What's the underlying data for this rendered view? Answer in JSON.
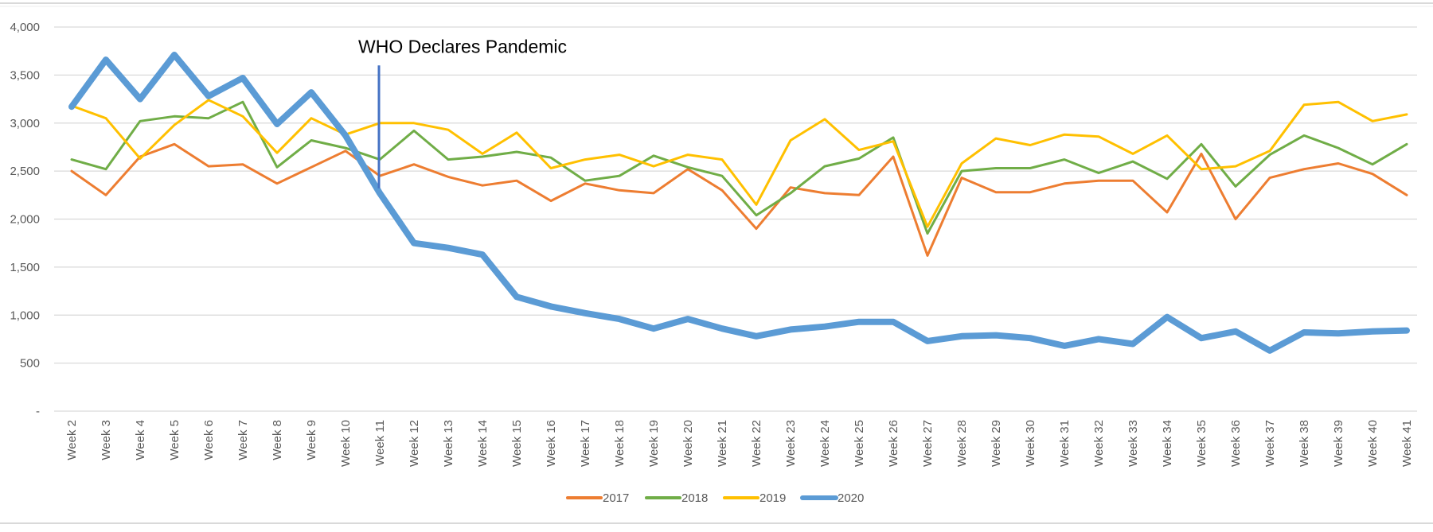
{
  "chart_data": {
    "type": "line",
    "title": "",
    "xlabel": "",
    "ylabel": "",
    "ylim": [
      0,
      4000
    ],
    "y_ticks": [
      0,
      500,
      1000,
      1500,
      2000,
      2500,
      3000,
      3500,
      4000
    ],
    "y_tick_labels": [
      "-",
      "500",
      "1,000",
      "1,500",
      "2,000",
      "2,500",
      "3,000",
      "3,500",
      "4,000"
    ],
    "grid": true,
    "legend_position": "bottom",
    "categories": [
      "Week 2",
      "Week 3",
      "Week 4",
      "Week 5",
      "Week 6",
      "Week 7",
      "Week 8",
      "Week 9",
      "Week 10",
      "Week 11",
      "Week 12",
      "Week 13",
      "Week 14",
      "Week 15",
      "Week 16",
      "Week 17",
      "Week 18",
      "Week 19",
      "Week 20",
      "Week 21",
      "Week 22",
      "Week 23",
      "Week 24",
      "Week 25",
      "Week 26",
      "Week 27",
      "Week 28",
      "Week 29",
      "Week 30",
      "Week 31",
      "Week 32",
      "Week 33",
      "Week 34",
      "Week 35",
      "Week 36",
      "Week 37",
      "Week 38",
      "Week 39",
      "Week 40",
      "Week 41"
    ],
    "series": [
      {
        "name": "2017",
        "color": "#ED7D31",
        "width": 3,
        "values": [
          2500,
          2250,
          2650,
          2780,
          2550,
          2570,
          2370,
          2540,
          2710,
          2450,
          2570,
          2440,
          2350,
          2400,
          2190,
          2370,
          2300,
          2270,
          2520,
          2300,
          1900,
          2330,
          2270,
          2250,
          2650,
          1620,
          2430,
          2280,
          2280,
          2370,
          2400,
          2400,
          2070,
          2680,
          2000,
          2430,
          2520,
          2580,
          2470,
          2250
        ]
      },
      {
        "name": "2018",
        "color": "#70AD47",
        "width": 3,
        "values": [
          2620,
          2520,
          3020,
          3070,
          3050,
          3220,
          2540,
          2820,
          2740,
          2620,
          2920,
          2620,
          2650,
          2700,
          2640,
          2400,
          2450,
          2660,
          2540,
          2450,
          2040,
          2270,
          2550,
          2630,
          2850,
          1850,
          2500,
          2530,
          2530,
          2620,
          2480,
          2600,
          2420,
          2780,
          2340,
          2670,
          2870,
          2740,
          2570,
          2780
        ]
      },
      {
        "name": "2019",
        "color": "#FFC000",
        "width": 3,
        "values": [
          3180,
          3050,
          2630,
          2980,
          3240,
          3070,
          2690,
          3050,
          2880,
          3000,
          3000,
          2930,
          2680,
          2900,
          2530,
          2620,
          2670,
          2550,
          2670,
          2620,
          2150,
          2820,
          3040,
          2720,
          2810,
          1920,
          2580,
          2840,
          2770,
          2880,
          2860,
          2680,
          2870,
          2520,
          2550,
          2710,
          3190,
          3220,
          3020,
          3090
        ]
      },
      {
        "name": "2020",
        "color": "#5B9BD5",
        "width": 8,
        "values": [
          3170,
          3660,
          3250,
          3710,
          3280,
          3470,
          2990,
          3320,
          2870,
          2270,
          1750,
          1700,
          1630,
          1190,
          1090,
          1020,
          960,
          860,
          960,
          860,
          780,
          850,
          880,
          930,
          930,
          730,
          780,
          790,
          760,
          680,
          750,
          700,
          980,
          760,
          830,
          630,
          820,
          810,
          830,
          840
        ]
      }
    ],
    "annotations": [
      {
        "text": "WHO Declares Pandemic",
        "x": "Week 11",
        "y_from": 2320,
        "y_to": 3600,
        "color": "#4472C4"
      }
    ]
  }
}
